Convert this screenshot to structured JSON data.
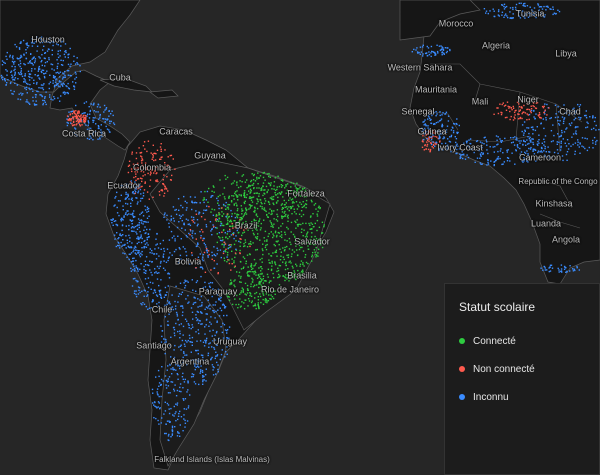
{
  "legend": {
    "title": "Statut scolaire",
    "items": [
      {
        "label": "Connecté",
        "color": "#2ecc40"
      },
      {
        "label": "Non connecté",
        "color": "#ff5a4e"
      },
      {
        "label": "Inconnu",
        "color": "#3a8cff"
      }
    ]
  },
  "places": [
    {
      "name": "Houston"
    },
    {
      "name": "Cuba"
    },
    {
      "name": "Costa Rica"
    },
    {
      "name": "Caracas"
    },
    {
      "name": "Guyana"
    },
    {
      "name": "Colombia"
    },
    {
      "name": "Ecuador"
    },
    {
      "name": "Fortaleza"
    },
    {
      "name": "Brazil"
    },
    {
      "name": "Salvador"
    },
    {
      "name": "Bolivia"
    },
    {
      "name": "Brasilia"
    },
    {
      "name": "Rio de Janeiro"
    },
    {
      "name": "Paraguay"
    },
    {
      "name": "Chile"
    },
    {
      "name": "Uruguay"
    },
    {
      "name": "Santiago"
    },
    {
      "name": "Argentina"
    },
    {
      "name": "Falkland Islands (Islas Malvinas)"
    },
    {
      "name": "Morocco"
    },
    {
      "name": "Tunisia"
    },
    {
      "name": "Algeria"
    },
    {
      "name": "Libya"
    },
    {
      "name": "Western Sahara"
    },
    {
      "name": "Mauritania"
    },
    {
      "name": "Mali"
    },
    {
      "name": "Niger"
    },
    {
      "name": "Chad"
    },
    {
      "name": "Senegal"
    },
    {
      "name": "Guinea"
    },
    {
      "name": "Ivory Coast"
    },
    {
      "name": "Cameroon"
    },
    {
      "name": "Republic of the Congo"
    },
    {
      "name": "Kinshasa"
    },
    {
      "name": "Luanda"
    },
    {
      "name": "Angola"
    }
  ]
}
